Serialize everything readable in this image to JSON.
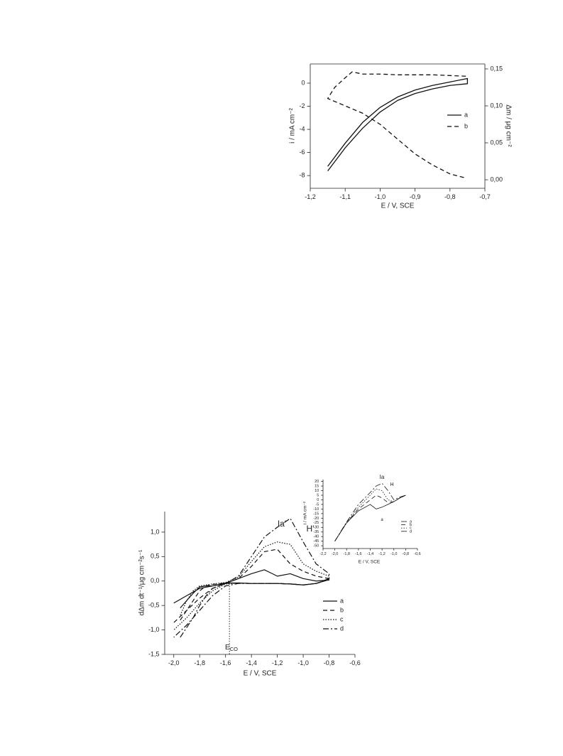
{
  "chart_data": [
    {
      "type": "line",
      "xlabel": "E / V, SCE",
      "ylabel": "i / mA cm⁻²",
      "y2label": "Δm / μg cm⁻²",
      "xlim": [
        -1.2,
        -0.7
      ],
      "xticks": [
        {
          "value": -1.2,
          "label": "-1,2"
        },
        {
          "value": -1.1,
          "label": "-1,1"
        },
        {
          "value": -1.0,
          "label": "-1,0"
        },
        {
          "value": -0.9,
          "label": "-0,9"
        },
        {
          "value": -0.8,
          "label": "-0,8"
        },
        {
          "value": -0.7,
          "label": "-0,7"
        }
      ],
      "ylim": [
        -9.1,
        1.66
      ],
      "yticks": [
        -8,
        -6,
        -4,
        -2,
        0
      ],
      "y2lim": [
        -0.0115,
        0.1567
      ],
      "y2ticks": [
        {
          "value": 0,
          "label": "0,00"
        },
        {
          "value": 0.05,
          "label": "0,05"
        },
        {
          "value": 0.1,
          "label": "0,10"
        },
        {
          "value": 0.15,
          "label": "0,15"
        }
      ],
      "legend": "right",
      "series": [
        {
          "name": "a",
          "color": "#111111",
          "dash": "solid",
          "x": [
            -1.15,
            -1.1,
            -1.05,
            -1.0,
            -0.95,
            -0.9,
            -0.85,
            -0.8,
            -0.75,
            -0.75,
            -0.8,
            -0.85,
            -0.9,
            -0.95,
            -1.0,
            -1.05,
            -1.1,
            -1.15
          ],
          "values": [
            -7.6,
            -5.6,
            -3.9,
            -2.5,
            -1.5,
            -0.9,
            -0.5,
            -0.2,
            -0.05,
            0.4,
            0.1,
            -0.2,
            -0.6,
            -1.2,
            -2.1,
            -3.4,
            -5.2,
            -7.2
          ]
        },
        {
          "name": "b",
          "color": "#111111",
          "dash": "dashed",
          "axis": "y2",
          "x": [
            -0.76,
            -0.8,
            -0.85,
            -0.9,
            -0.95,
            -1.0,
            -1.05,
            -1.1,
            -1.15,
            -1.13,
            -1.1,
            -1.08,
            -1.05,
            -1.0,
            -0.95,
            -0.9,
            -0.85,
            -0.8,
            -0.75
          ],
          "values": [
            0.003,
            0.008,
            0.02,
            0.035,
            0.055,
            0.075,
            0.09,
            0.1,
            0.11,
            0.125,
            0.138,
            0.146,
            0.143,
            0.143,
            0.142,
            0.142,
            0.142,
            0.141,
            0.14
          ]
        }
      ]
    },
    {
      "type": "line",
      "xlabel": "E / V, SCE",
      "ylabel": "dΔm dt⁻¹/μg cm⁻²s⁻¹",
      "xlim": [
        -2.07,
        -0.6
      ],
      "xticks": [
        {
          "value": -2.0,
          "label": "-2,0"
        },
        {
          "value": -1.8,
          "label": "-1,8"
        },
        {
          "value": -1.6,
          "label": "-1,6"
        },
        {
          "value": -1.4,
          "label": "-1,4"
        },
        {
          "value": -1.2,
          "label": "-1,2"
        },
        {
          "value": -1.0,
          "label": "-1,0"
        },
        {
          "value": -0.8,
          "label": "-0,8"
        },
        {
          "value": -0.6,
          "label": "-0,6"
        }
      ],
      "ylim": [
        -1.5,
        1.42
      ],
      "yticks": [
        {
          "value": -1.5,
          "label": "-1,5"
        },
        {
          "value": -1.0,
          "label": "-1,0"
        },
        {
          "value": -0.5,
          "label": "-0,5"
        },
        {
          "value": 0,
          "label": "0,0"
        },
        {
          "value": 0.5,
          "label": "0,5"
        },
        {
          "value": 1.0,
          "label": "1,0"
        }
      ],
      "legend": "lower right",
      "annotations": [
        {
          "text": "H'"
        },
        {
          "text": "Ia'"
        },
        {
          "text": "E",
          "subscript": "CO"
        }
      ],
      "reference_line": {
        "x": -1.57,
        "style": "dotted"
      },
      "series": [
        {
          "name": "a",
          "color": "#111111",
          "dash": "solid",
          "x": [
            -1.95,
            -1.9,
            -1.85,
            -1.8,
            -1.75,
            -1.7,
            -1.6,
            -1.5,
            -1.4,
            -1.3,
            -1.2,
            -1.1,
            -1.0,
            -0.9,
            -0.8,
            -0.8,
            -0.9,
            -1.0,
            -1.1,
            -1.2,
            -1.3,
            -1.4,
            -1.5,
            -1.6,
            -1.7,
            -1.8,
            -1.9,
            -2.0
          ],
          "values": [
            -0.55,
            -0.4,
            -0.25,
            -0.12,
            -0.1,
            -0.1,
            -0.05,
            0.05,
            0.15,
            0.23,
            0.1,
            0.15,
            0.05,
            0.0,
            0.02,
            0.03,
            -0.05,
            -0.08,
            -0.06,
            -0.05,
            -0.05,
            -0.05,
            -0.04,
            -0.04,
            -0.1,
            -0.15,
            -0.3,
            -0.45
          ]
        },
        {
          "name": "b",
          "color": "#111111",
          "dash": "dashed",
          "x": [
            -1.95,
            -1.9,
            -1.85,
            -1.8,
            -1.75,
            -1.7,
            -1.6,
            -1.5,
            -1.4,
            -1.3,
            -1.2,
            -1.1,
            -1.0,
            -0.9,
            -0.8,
            -0.8,
            -0.9,
            -1.0,
            -1.1,
            -1.2,
            -1.3,
            -1.4,
            -1.5,
            -1.6,
            -1.7,
            -1.8,
            -1.9,
            -2.0
          ],
          "values": [
            -0.8,
            -0.6,
            -0.4,
            -0.2,
            -0.1,
            -0.07,
            -0.04,
            0.05,
            0.3,
            0.6,
            0.65,
            0.35,
            0.2,
            0.1,
            0.05,
            0.03,
            -0.05,
            -0.08,
            -0.06,
            -0.05,
            -0.05,
            -0.05,
            -0.04,
            -0.05,
            -0.15,
            -0.35,
            -0.6,
            -0.85
          ]
        },
        {
          "name": "c",
          "color": "#111111",
          "dash": "dotted",
          "x": [
            -1.95,
            -1.9,
            -1.85,
            -1.8,
            -1.75,
            -1.7,
            -1.6,
            -1.5,
            -1.4,
            -1.3,
            -1.2,
            -1.1,
            -1.0,
            -0.9,
            -0.8,
            -0.8,
            -0.9,
            -1.0,
            -1.1,
            -1.2,
            -1.3,
            -1.4,
            -1.5,
            -1.6,
            -1.7,
            -1.8,
            -1.9,
            -2.0
          ],
          "values": [
            -0.7,
            -0.4,
            -0.2,
            -0.1,
            -0.08,
            -0.06,
            -0.03,
            0.08,
            0.4,
            0.7,
            0.8,
            0.75,
            0.35,
            0.2,
            0.1,
            0.05,
            -0.05,
            -0.08,
            -0.06,
            -0.05,
            -0.05,
            -0.05,
            -0.04,
            -0.06,
            -0.2,
            -0.45,
            -0.75,
            -1.0
          ]
        },
        {
          "name": "d",
          "color": "#111111",
          "dash": "dashdot",
          "x": [
            -1.95,
            -1.9,
            -1.85,
            -1.8,
            -1.75,
            -1.7,
            -1.6,
            -1.5,
            -1.4,
            -1.3,
            -1.2,
            -1.1,
            -1.0,
            -0.9,
            -0.8,
            -0.8,
            -0.9,
            -1.0,
            -1.1,
            -1.2,
            -1.3,
            -1.4,
            -1.5,
            -1.6,
            -1.7,
            -1.8,
            -1.9,
            -2.0
          ],
          "values": [
            -1.15,
            -0.95,
            -0.75,
            -0.5,
            -0.3,
            -0.15,
            -0.05,
            0.1,
            0.5,
            0.9,
            1.1,
            1.28,
            0.8,
            0.35,
            0.15,
            0.05,
            -0.05,
            -0.08,
            -0.06,
            -0.05,
            -0.05,
            -0.05,
            -0.05,
            -0.1,
            -0.3,
            -0.6,
            -0.9,
            -1.15
          ]
        }
      ]
    },
    {
      "type": "line",
      "xlabel": "E / V, SCE",
      "ylabel": "i / mA cm⁻²",
      "xlim": [
        -2.2,
        -0.6
      ],
      "xticks": [
        {
          "value": -2.2,
          "label": "-2,2"
        },
        {
          "value": -2.0,
          "label": "-2,0"
        },
        {
          "value": -1.8,
          "label": "-1,8"
        },
        {
          "value": -1.6,
          "label": "-1,6"
        },
        {
          "value": -1.4,
          "label": "-1,4"
        },
        {
          "value": -1.2,
          "label": "-1,2"
        },
        {
          "value": -1.0,
          "label": "-1,0"
        },
        {
          "value": -0.8,
          "label": "-0,8"
        },
        {
          "value": -0.6,
          "label": "-0,6"
        }
      ],
      "ylim": [
        -53,
        22
      ],
      "yticks": [
        20,
        15,
        10,
        5,
        0,
        -5,
        -10,
        -15,
        -20,
        -25,
        -30,
        -35,
        -40,
        -45,
        -50
      ],
      "legend": "lower right",
      "annotations": [
        {
          "text": "Ia"
        },
        {
          "text": "H"
        },
        {
          "text": "a"
        }
      ],
      "series": [
        {
          "name": "a",
          "color": "#111111",
          "dash": "solid",
          "x": [
            -2.0,
            -1.8,
            -1.6,
            -1.4,
            -1.3,
            -1.2,
            -1.1,
            -1.0,
            -0.9,
            -0.8
          ],
          "values": [
            -45,
            -25,
            -12,
            -5,
            -10,
            -8,
            -5,
            -2,
            2,
            5
          ]
        },
        {
          "name": "b",
          "color": "#111111",
          "dash": "dashed",
          "x": [
            -2.0,
            -1.8,
            -1.6,
            -1.4,
            -1.3,
            -1.2,
            -1.1,
            -1.0,
            -0.9,
            -0.8
          ],
          "values": [
            -45,
            -25,
            -10,
            0,
            5,
            2,
            -3,
            -2,
            2,
            5
          ]
        },
        {
          "name": "c",
          "color": "#111111",
          "dash": "dotted",
          "x": [
            -2.0,
            -1.8,
            -1.6,
            -1.4,
            -1.3,
            -1.2,
            -1.1,
            -1.0,
            -0.9,
            -0.8
          ],
          "values": [
            -45,
            -25,
            -8,
            5,
            12,
            10,
            0,
            -2,
            2,
            5
          ]
        },
        {
          "name": "d",
          "color": "#111111",
          "dash": "dashdot",
          "x": [
            -2.0,
            -1.8,
            -1.6,
            -1.4,
            -1.3,
            -1.2,
            -1.1,
            -1.0,
            -0.9,
            -0.8
          ],
          "values": [
            -45,
            -24,
            -5,
            8,
            15,
            18,
            10,
            0,
            3,
            5
          ]
        }
      ]
    }
  ]
}
